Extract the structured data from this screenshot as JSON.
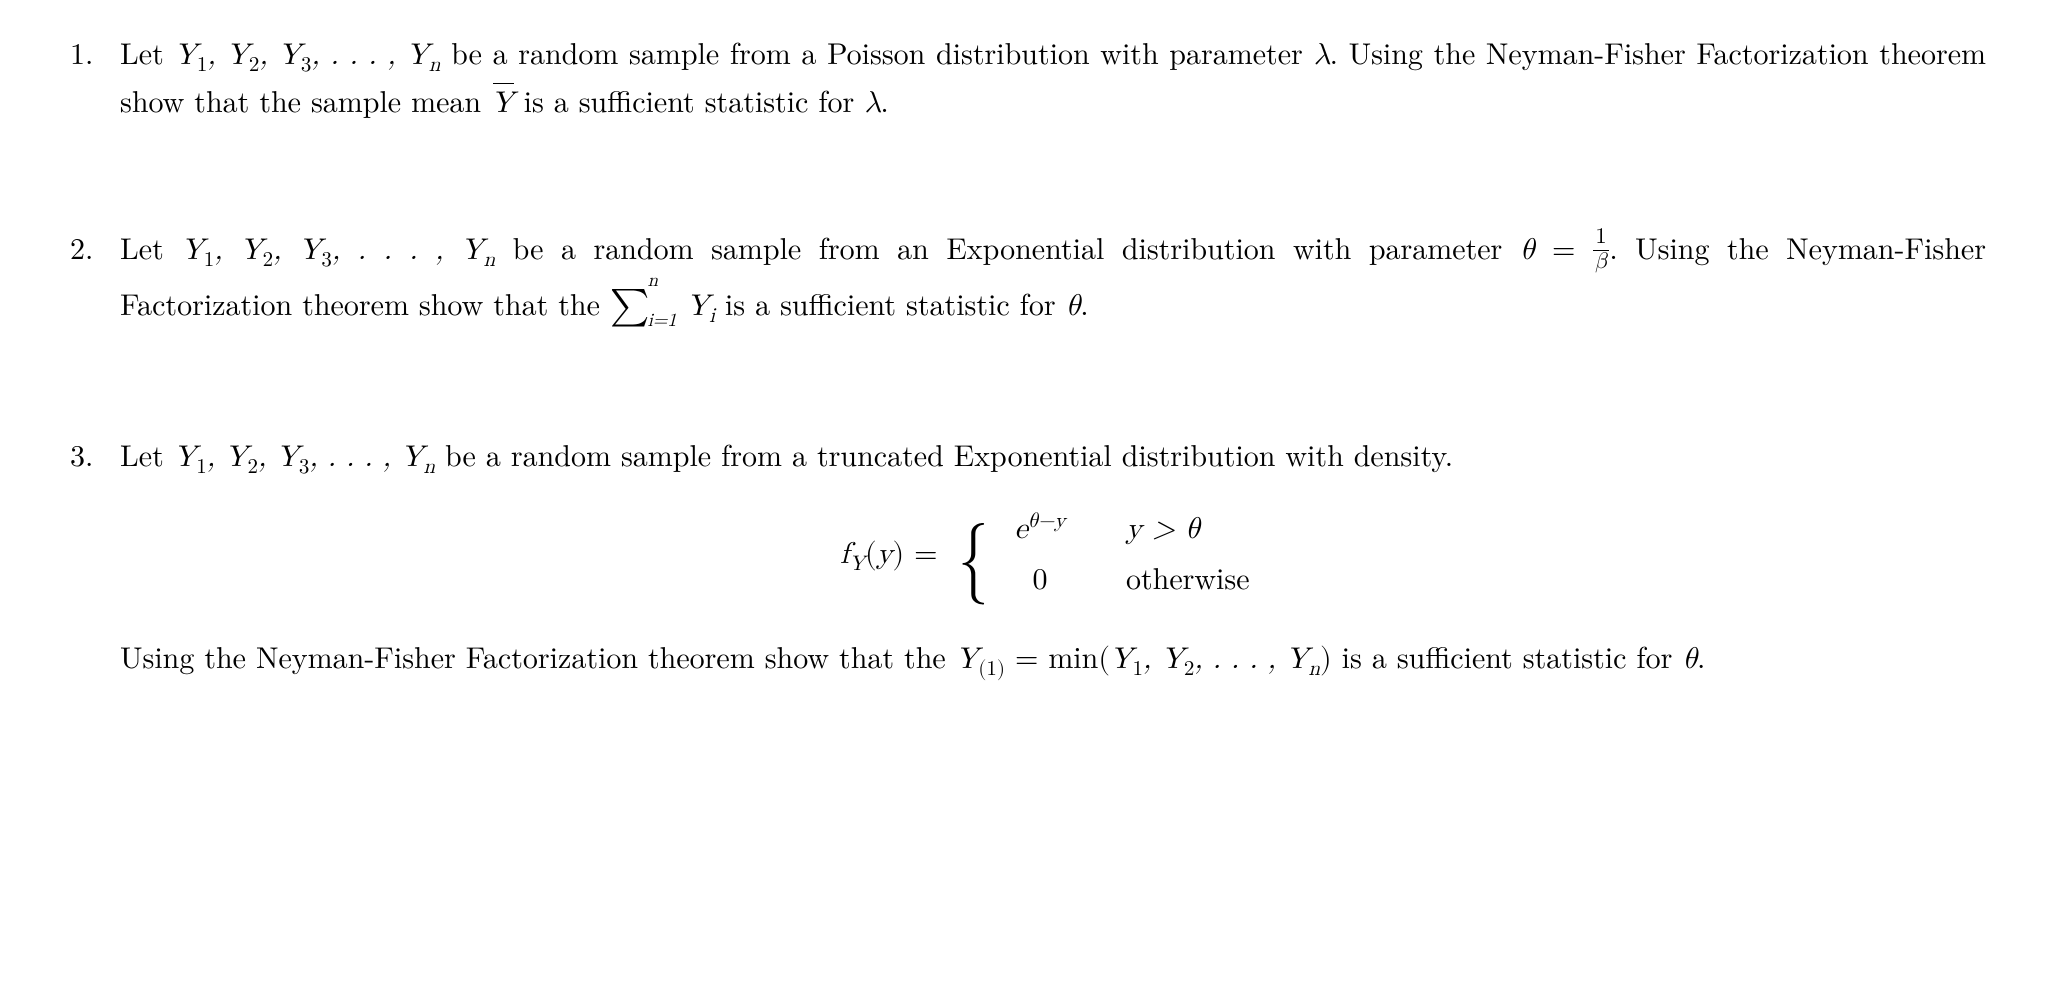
{
  "colors": {
    "text": "#000000",
    "background": "#ffffff"
  },
  "typography": {
    "body_fontsize_pt": 22,
    "font_family": "Latin Modern Roman / Times serif",
    "sub_sup_scale": 0.7
  },
  "items": [
    {
      "number": "1.",
      "lead": "Let ",
      "sample_seq": "Y₁, Y₂, Y₃, . . . , Yₙ",
      "mid1": " be a random sample from a Poisson distribution with parameter ",
      "param": "λ",
      "mid2": ".  Using the Neyman-Fisher Factorization theorem show that the sample mean ",
      "stat": "Ȳ",
      "tail": " is a sufficient statistic for ",
      "param2": "λ",
      "end": "."
    },
    {
      "number": "2.",
      "lead": "Let ",
      "sample_seq": "Y₁, Y₂, Y₃, . . . , Yₙ",
      "mid1": " be a random sample from an Exponential distribution with parameter ",
      "param_eq_lhs": "θ",
      "eq": " = ",
      "frac_num": "1",
      "frac_den": "β",
      "mid2": ". Using the Neyman-Fisher Factorization theorem show that the ",
      "sum_lower": "i=1",
      "sum_upper": "n",
      "sum_body": "Yᵢ",
      "tail": " is a sufficient statistic for ",
      "param2": "θ",
      "end": "."
    },
    {
      "number": "3.",
      "lead": "Let ",
      "sample_seq": "Y₁, Y₂, Y₃, . . . , Yₙ",
      "mid1": " be a random sample from a truncated Exponential distribution with density.",
      "density": {
        "fn_label_f": "f",
        "fn_label_sub": "Y",
        "fn_arg": "y",
        "case1_expr_base": "e",
        "case1_expr_exp": "θ−y",
        "case1_cond_lhs": "y",
        "case1_cond_op": " > ",
        "case1_cond_rhs": "θ",
        "case2_expr": "0",
        "case2_cond": "otherwise"
      },
      "mid2": "Using the Neyman-Fisher Factorization theorem show that the ",
      "stat_lhs": "Y",
      "stat_sub": "(1)",
      "stat_eq": " = min(",
      "stat_args": "Y₁, Y₂, . . . , Yₙ",
      "stat_close": ")",
      "tail": " is a sufficient statistic for ",
      "param2": "θ",
      "end": "."
    }
  ]
}
